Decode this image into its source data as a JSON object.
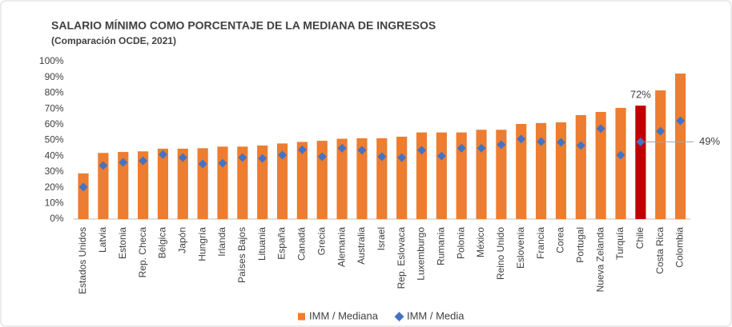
{
  "chart_data": {
    "type": "bar",
    "title": "SALARIO MÍNIMO COMO PORCENTAJE DE LA MEDIANA DE INGRESOS",
    "subtitle": "(Comparación OCDE, 2021)",
    "categories": [
      "Estados Unidos",
      "Latvia",
      "Estonia",
      "Rep. Checa",
      "Bélgica",
      "Japón",
      "Hungría",
      "Irlanda",
      "Países Bajos",
      "Lituania",
      "España",
      "Canadá",
      "Grecia",
      "Alemania",
      "Australia",
      "Israel",
      "Rep. Eslovaca",
      "Luxemburgo",
      "Rumania",
      "Polonia",
      "México",
      "Reino Unido",
      "Eslovenia",
      "Francia",
      "Corea",
      "Portugal",
      "Nueva Zelanda",
      "Turquía",
      "Chile",
      "Costa Rica",
      "Colombia"
    ],
    "series": [
      {
        "name": "IMM / Mediana",
        "type": "bar",
        "color": "#ed7d31",
        "colors": [
          "#ed7d31",
          "#ed7d31",
          "#ed7d31",
          "#ed7d31",
          "#ed7d31",
          "#ed7d31",
          "#ed7d31",
          "#ed7d31",
          "#ed7d31",
          "#ed7d31",
          "#ed7d31",
          "#ed7d31",
          "#ed7d31",
          "#ed7d31",
          "#ed7d31",
          "#ed7d31",
          "#ed7d31",
          "#ed7d31",
          "#ed7d31",
          "#ed7d31",
          "#ed7d31",
          "#ed7d31",
          "#ed7d31",
          "#ed7d31",
          "#ed7d31",
          "#ed7d31",
          "#ed7d31",
          "#ed7d31",
          "#c00000",
          "#ed7d31",
          "#ed7d31"
        ],
        "values": [
          29,
          42,
          42.6,
          43,
          44.7,
          44.7,
          45,
          46,
          46,
          46.7,
          48,
          49,
          49.7,
          51,
          51.3,
          51.3,
          52.3,
          55,
          55,
          55,
          56.7,
          56.7,
          60.4,
          61,
          61.4,
          66,
          68,
          70.6,
          72,
          81.7,
          92.4
        ],
        "value_labels": [
          null,
          null,
          null,
          null,
          null,
          null,
          null,
          null,
          null,
          null,
          null,
          null,
          null,
          null,
          null,
          null,
          null,
          null,
          null,
          null,
          null,
          null,
          null,
          null,
          null,
          null,
          null,
          null,
          "72%",
          null,
          null
        ]
      },
      {
        "name": "IMM / Media",
        "type": "scatter",
        "color": "#4472c4",
        "values": [
          20.3,
          34,
          36,
          37,
          41,
          39,
          35,
          35.5,
          39,
          38.5,
          40.6,
          44,
          39.6,
          45,
          43.7,
          39.6,
          39,
          43.7,
          40,
          45,
          45,
          47.2,
          50.8,
          49.2,
          48.7,
          46.7,
          57.4,
          40.6,
          49,
          55.8,
          62.4
        ],
        "value_labels": [
          null,
          null,
          null,
          null,
          null,
          null,
          null,
          null,
          null,
          null,
          null,
          null,
          null,
          null,
          null,
          null,
          null,
          null,
          null,
          null,
          null,
          null,
          null,
          null,
          null,
          null,
          null,
          null,
          "49%",
          null,
          null
        ]
      }
    ],
    "ylim": [
      0,
      100
    ],
    "yticks": [
      {
        "value": 0,
        "label": "0%"
      },
      {
        "value": 10,
        "label": "10%"
      },
      {
        "value": 20,
        "label": "20%"
      },
      {
        "value": 30,
        "label": "30%"
      },
      {
        "value": 40,
        "label": "40%"
      },
      {
        "value": 50,
        "label": "50%"
      },
      {
        "value": 60,
        "label": "60%"
      },
      {
        "value": 70,
        "label": "70%"
      },
      {
        "value": 80,
        "label": "80%"
      },
      {
        "value": 90,
        "label": "90%"
      },
      {
        "value": 100,
        "label": "100%"
      }
    ],
    "grid": false,
    "legend": "bottom"
  }
}
